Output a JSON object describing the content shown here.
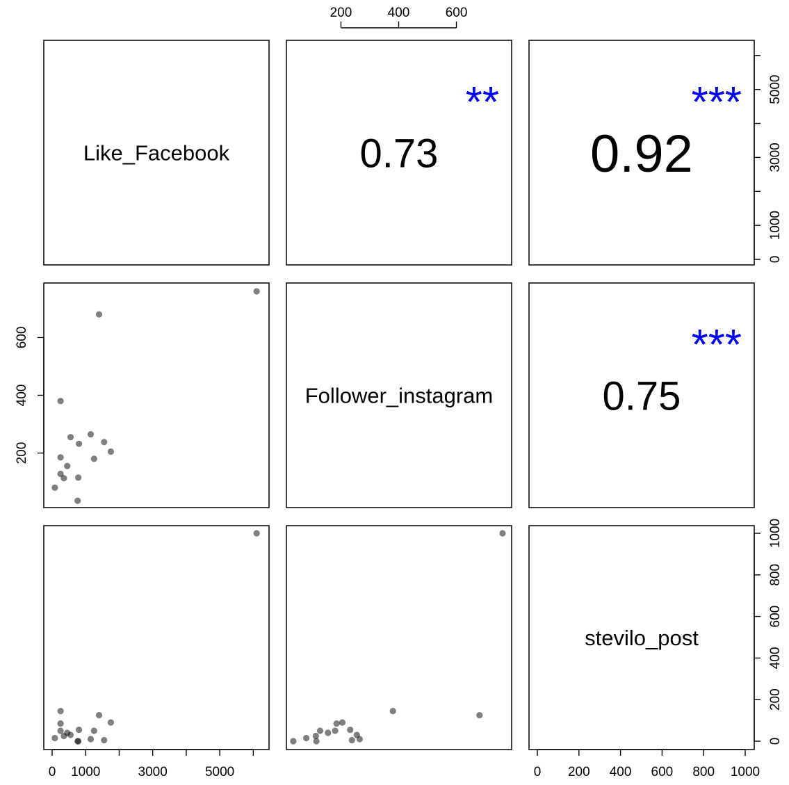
{
  "chart_data": {
    "type": "scatter",
    "matrix": "pairs",
    "variables": [
      "Like_Facebook",
      "Follower_instagram",
      "stevilo_post"
    ],
    "diagonal_labels": [
      "Like_Facebook",
      "Follower_instagram",
      "stevilo_post"
    ],
    "correlations": [
      {
        "pair": [
          "Like_Facebook",
          "Follower_instagram"
        ],
        "value": "0.73",
        "stars": "**"
      },
      {
        "pair": [
          "Like_Facebook",
          "stevilo_post"
        ],
        "value": "0.92",
        "stars": "***"
      },
      {
        "pair": [
          "Follower_instagram",
          "stevilo_post"
        ],
        "value": "0.75",
        "stars": "***"
      }
    ],
    "star_color": "#0000ff",
    "point_color": "#000000",
    "axes": {
      "like_facebook": {
        "range": [
          0,
          6200
        ],
        "major_ticks": [
          0,
          1000,
          3000,
          5000
        ],
        "minor_ticks": [
          2000,
          4000,
          6000
        ]
      },
      "follower_instagram": {
        "range": [
          40,
          760
        ],
        "ticks": [
          200,
          400,
          600
        ]
      },
      "stevilo_post": {
        "range": [
          0,
          1000
        ],
        "ticks": [
          0,
          200,
          400,
          600,
          800,
          1000
        ]
      }
    },
    "tick_labels": {
      "top_follower_instagram": [
        "200",
        "400",
        "600"
      ],
      "right_like_facebook": [
        "0",
        "1000",
        "3000",
        "5000"
      ],
      "left_follower_instagram": [
        "200",
        "400",
        "600"
      ],
      "right_stevilo_post": [
        "0",
        "200",
        "400",
        "600",
        "800",
        "1000"
      ],
      "bottom_like_facebook": [
        "0",
        "1000",
        "3000",
        "5000"
      ],
      "bottom_stevilo_post": [
        "0",
        "200",
        "400",
        "600",
        "800",
        "1000"
      ]
    },
    "points": [
      {
        "like_facebook": 6100,
        "follower_instagram": 760,
        "stevilo_post": 1000
      },
      {
        "like_facebook": 1400,
        "follower_instagram": 680,
        "stevilo_post": 125
      },
      {
        "like_facebook": 250,
        "follower_instagram": 380,
        "stevilo_post": 145
      },
      {
        "like_facebook": 1150,
        "follower_instagram": 265,
        "stevilo_post": 10
      },
      {
        "like_facebook": 550,
        "follower_instagram": 255,
        "stevilo_post": 30
      },
      {
        "like_facebook": 1550,
        "follower_instagram": 238,
        "stevilo_post": 5
      },
      {
        "like_facebook": 800,
        "follower_instagram": 232,
        "stevilo_post": 55
      },
      {
        "like_facebook": 1750,
        "follower_instagram": 205,
        "stevilo_post": 90
      },
      {
        "like_facebook": 250,
        "follower_instagram": 185,
        "stevilo_post": 85
      },
      {
        "like_facebook": 1250,
        "follower_instagram": 180,
        "stevilo_post": 50
      },
      {
        "like_facebook": 450,
        "follower_instagram": 155,
        "stevilo_post": 40
      },
      {
        "like_facebook": 250,
        "follower_instagram": 128,
        "stevilo_post": 50
      },
      {
        "like_facebook": 350,
        "follower_instagram": 113,
        "stevilo_post": 25
      },
      {
        "like_facebook": 780,
        "follower_instagram": 115,
        "stevilo_post": 0
      },
      {
        "like_facebook": 80,
        "follower_instagram": 80,
        "stevilo_post": 15
      },
      {
        "like_facebook": 760,
        "follower_instagram": 35,
        "stevilo_post": 0
      }
    ]
  }
}
